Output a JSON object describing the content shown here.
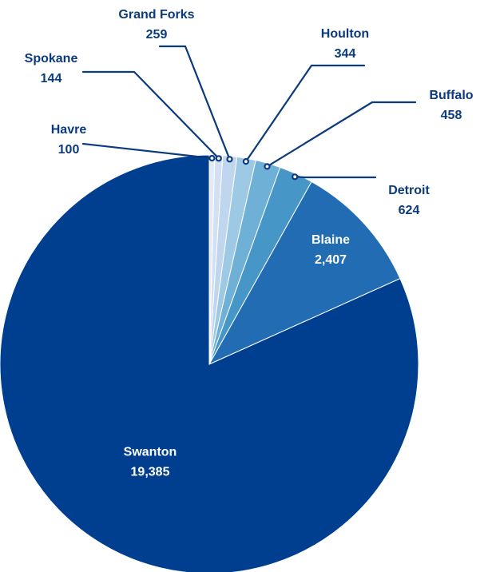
{
  "chart_data": {
    "type": "pie",
    "start_angle_deg": 0,
    "direction": "clockwise",
    "label_color": "#0b3a7e",
    "slices": [
      {
        "label": "Havre",
        "value": 100,
        "value_label": "100",
        "color": "#e4ebf8",
        "label_position": "outside"
      },
      {
        "label": "Spokane",
        "value": 144,
        "value_label": "144",
        "color": "#d3e0f3",
        "label_position": "outside"
      },
      {
        "label": "Grand Forks",
        "value": 259,
        "value_label": "259",
        "color": "#c0d6ee",
        "label_position": "outside"
      },
      {
        "label": "Houlton",
        "value": 344,
        "value_label": "344",
        "color": "#9ec9e4",
        "label_position": "outside"
      },
      {
        "label": "Buffalo",
        "value": 458,
        "value_label": "458",
        "color": "#6fb1d6",
        "label_position": "outside"
      },
      {
        "label": "Detroit",
        "value": 624,
        "value_label": "624",
        "color": "#4796c8",
        "label_position": "outside"
      },
      {
        "label": "Blaine",
        "value": 2407,
        "value_label": "2,407",
        "color": "#226cb3",
        "label_position": "inside"
      },
      {
        "label": "Swanton",
        "value": 19385,
        "value_label": "19,385",
        "color": "#003f8f",
        "label_position": "inside"
      }
    ]
  }
}
